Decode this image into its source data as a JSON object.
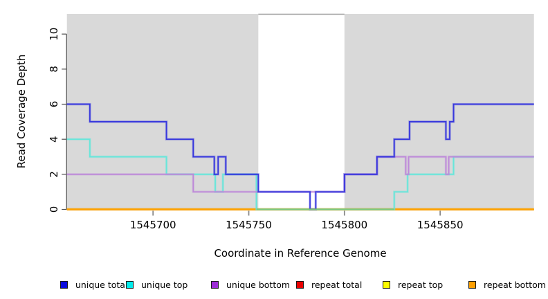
{
  "chart_data": {
    "type": "line",
    "subtype": "step-coverage-plot",
    "title": "",
    "xlabel": "Coordinate in Reference Genome",
    "ylabel": "Read Coverage Depth",
    "xlim": [
      1545655,
      1545899
    ],
    "ylim": [
      0,
      11.15
    ],
    "x_ticks": [
      "1545700",
      "1545750",
      "1545800",
      "1545850"
    ],
    "x_tick_values": [
      1545700,
      1545750,
      1545800,
      1545850
    ],
    "y_ticks": [
      "0",
      "2",
      "4",
      "6",
      "8",
      "10"
    ],
    "y_tick_values": [
      0,
      2,
      4,
      6,
      8,
      10
    ],
    "grid": "off",
    "panel_bg": "#d9d9d9",
    "highlight_region": {
      "x1": 1545755,
      "x2": 1545800,
      "color": "#ffffff",
      "top_border": "#a0a0a0",
      "note": "white unmasked band over gray panel"
    },
    "axis_color": "#4a4a4a",
    "x_tick_color": "#8a8a8a",
    "series": [
      {
        "name": "repeat total",
        "line_color": "#dd2222",
        "steps": [
          [
            1545655,
            0
          ],
          [
            1545899,
            0
          ]
        ]
      },
      {
        "name": "repeat top",
        "line_color": "#f5f500",
        "steps": [
          [
            1545655,
            0
          ],
          [
            1545899,
            0
          ]
        ]
      },
      {
        "name": "repeat bottom",
        "line_color": "#ff9d00",
        "steps": [
          [
            1545655,
            0
          ],
          [
            1545899,
            0
          ]
        ]
      },
      {
        "name": "unique top",
        "line_color": "#63e6da",
        "steps": [
          [
            1545655,
            4
          ],
          [
            1545667,
            3
          ],
          [
            1545707,
            2
          ],
          [
            1545732.5,
            1
          ],
          [
            1545736.5,
            2
          ],
          [
            1545754,
            0
          ],
          [
            1545826,
            1
          ],
          [
            1545833,
            2
          ],
          [
            1545857,
            3
          ],
          [
            1545899,
            3
          ]
        ]
      },
      {
        "name": "unique bottom",
        "line_color": "#bd87d9",
        "steps": [
          [
            1545655,
            2
          ],
          [
            1545721,
            1
          ],
          [
            1545800,
            2
          ],
          [
            1545817,
            3
          ],
          [
            1545832,
            2
          ],
          [
            1545833.5,
            3
          ],
          [
            1545853,
            2
          ],
          [
            1545854.5,
            3
          ],
          [
            1545899,
            3
          ]
        ]
      },
      {
        "name": "unique total",
        "line_color": "#3232dd",
        "steps": [
          [
            1545655,
            6
          ],
          [
            1545667,
            5
          ],
          [
            1545707,
            4
          ],
          [
            1545721,
            3
          ],
          [
            1545732,
            2
          ],
          [
            1545734,
            3
          ],
          [
            1545738,
            2
          ],
          [
            1545755,
            1
          ],
          [
            1545782,
            0
          ],
          [
            1545785,
            1
          ],
          [
            1545800,
            2
          ],
          [
            1545817,
            3
          ],
          [
            1545826,
            4
          ],
          [
            1545834,
            5
          ],
          [
            1545853,
            4
          ],
          [
            1545855,
            5
          ],
          [
            1545857,
            6
          ],
          [
            1545899,
            6
          ]
        ]
      }
    ],
    "blend_segments": [
      {
        "y": 0,
        "x1": 1545754,
        "x2": 1545826,
        "color": "#7cc87c",
        "note": "unique-top drawn over repeat lines at depth 0 appears green"
      }
    ],
    "legend_position": "bottom"
  },
  "legend": {
    "items": [
      {
        "label": "unique total",
        "color": "#0b0bdf"
      },
      {
        "label": "unique top",
        "color": "#00ecec"
      },
      {
        "label": "unique bottom",
        "color": "#9d2bd6"
      },
      {
        "label": "repeat total",
        "color": "#ea0000"
      },
      {
        "label": "repeat top",
        "color": "#fcfc00"
      },
      {
        "label": "repeat bottom",
        "color": "#ff9f00"
      }
    ]
  }
}
